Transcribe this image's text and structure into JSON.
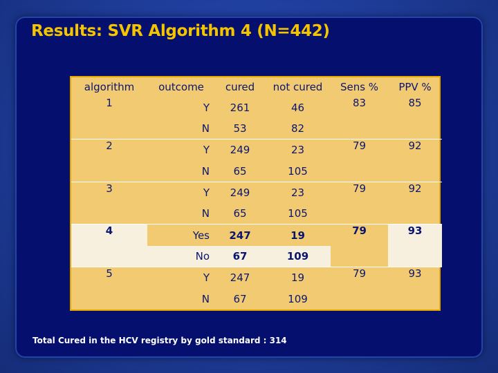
{
  "title": "Results: SVR Algorithm  4 (N=442)",
  "table": {
    "headers": [
      "algorithm",
      "outcome",
      "cured",
      "not cured",
      "Sens %",
      "PPV %"
    ],
    "groups": [
      {
        "algorithm": "1",
        "sens": "83",
        "ppv": "85",
        "rows": [
          {
            "outcome": "Y",
            "cured": "261",
            "not_cured": "46"
          },
          {
            "outcome": "N",
            "cured": "53",
            "not_cured": "82"
          }
        ]
      },
      {
        "algorithm": "2",
        "sens": "79",
        "ppv": "92",
        "rows": [
          {
            "outcome": "Y",
            "cured": "249",
            "not_cured": "23"
          },
          {
            "outcome": "N",
            "cured": "65",
            "not_cured": "105"
          }
        ]
      },
      {
        "algorithm": "3",
        "sens": "79",
        "ppv": "92",
        "rows": [
          {
            "outcome": "Y",
            "cured": "249",
            "not_cured": "23"
          },
          {
            "outcome": "N",
            "cured": "65",
            "not_cured": "105"
          }
        ]
      },
      {
        "algorithm": "4",
        "sens": "79",
        "ppv": "93",
        "rows": [
          {
            "outcome": "Yes",
            "cured": "247",
            "not_cured": "19"
          },
          {
            "outcome": "No",
            "cured": "67",
            "not_cured": "109"
          }
        ]
      },
      {
        "algorithm": "5",
        "sens": "79",
        "ppv": "93",
        "rows": [
          {
            "outcome": "Y",
            "cured": "247",
            "not_cured": "19"
          },
          {
            "outcome": "N",
            "cured": "67",
            "not_cured": "109"
          }
        ]
      }
    ]
  },
  "footnote": "Total Cured in the HCV registry by gold standard : 314"
}
